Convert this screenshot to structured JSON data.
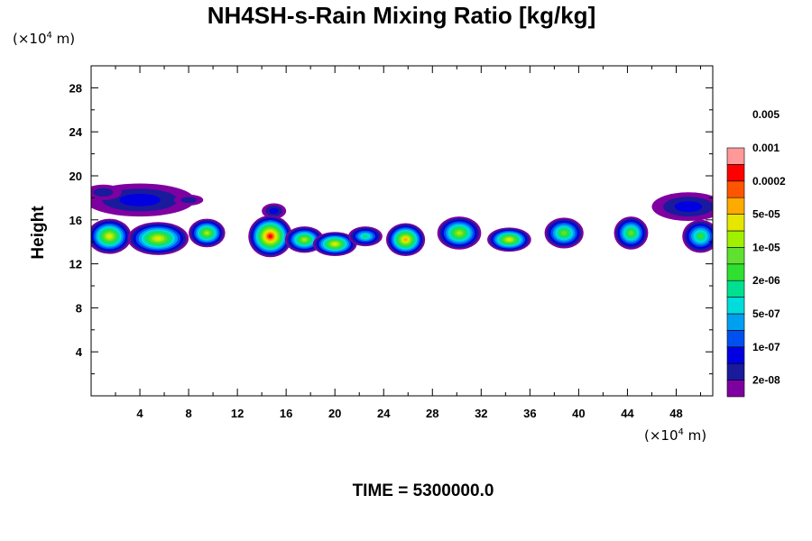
{
  "chart_data": {
    "type": "heatmap",
    "title": "NH4SH-s-Rain Mixing Ratio [kg/kg]",
    "ylabel": "Height",
    "x_unit_prefix": "(×10",
    "x_unit_exp": "4",
    "x_unit_suffix": " m)",
    "y_unit_prefix": "(×10",
    "y_unit_exp": "4",
    "y_unit_suffix": " m)",
    "xlim": [
      0,
      51
    ],
    "ylim": [
      0,
      30
    ],
    "x_ticks": [
      4,
      8,
      12,
      16,
      20,
      24,
      28,
      32,
      36,
      40,
      44,
      48
    ],
    "x_tick_labels": [
      "4",
      "8",
      "12",
      "16",
      "20",
      "24",
      "28",
      "32",
      "36",
      "40",
      "44",
      "48"
    ],
    "y_ticks": [
      4,
      8,
      12,
      16,
      20,
      24,
      28
    ],
    "y_tick_labels": [
      "4",
      "8",
      "12",
      "16",
      "20",
      "24",
      "28"
    ],
    "footer": "TIME = 5300000.0",
    "colorbar": {
      "colors": [
        "#7f00a0",
        "#1a1a9c",
        "#0000e0",
        "#0050f0",
        "#00a0f0",
        "#00dcdc",
        "#00e090",
        "#30e030",
        "#60e030",
        "#a0f000",
        "#e6e600",
        "#ffaa00",
        "#ff5500",
        "#ff0000",
        "#ff9999"
      ],
      "labels": [
        "2e-08",
        "1e-07",
        "5e-07",
        "2e-06",
        "1e-05",
        "5e-05",
        "0.0002",
        "0.001",
        "0.005"
      ]
    },
    "cloud_cells": [
      {
        "x": 1.5,
        "y": 14.5,
        "rx": 1.8,
        "ry": 1.6,
        "peak": 10
      },
      {
        "x": 5.5,
        "y": 14.3,
        "rx": 2.5,
        "ry": 1.5,
        "peak": 10
      },
      {
        "x": 9.5,
        "y": 14.8,
        "rx": 1.5,
        "ry": 1.3,
        "peak": 9
      },
      {
        "x": 14.7,
        "y": 14.5,
        "rx": 1.8,
        "ry": 1.9,
        "peak": 13
      },
      {
        "x": 17.5,
        "y": 14.2,
        "rx": 1.6,
        "ry": 1.2,
        "peak": 9
      },
      {
        "x": 20.0,
        "y": 13.8,
        "rx": 1.8,
        "ry": 1.1,
        "peak": 10
      },
      {
        "x": 22.5,
        "y": 14.5,
        "rx": 1.4,
        "ry": 0.9,
        "peak": 6
      },
      {
        "x": 25.8,
        "y": 14.2,
        "rx": 1.6,
        "ry": 1.5,
        "peak": 11
      },
      {
        "x": 30.2,
        "y": 14.8,
        "rx": 1.8,
        "ry": 1.5,
        "peak": 9
      },
      {
        "x": 34.3,
        "y": 14.2,
        "rx": 1.8,
        "ry": 1.1,
        "peak": 10
      },
      {
        "x": 38.8,
        "y": 14.8,
        "rx": 1.6,
        "ry": 1.4,
        "peak": 8
      },
      {
        "x": 44.3,
        "y": 14.8,
        "rx": 1.4,
        "ry": 1.5,
        "peak": 8
      },
      {
        "x": 50.0,
        "y": 14.5,
        "rx": 1.5,
        "ry": 1.5,
        "peak": 7
      }
    ],
    "anvil_cells": [
      {
        "x": 4.0,
        "y": 17.8,
        "rx": 4.5,
        "ry": 1.5,
        "peak": 2
      },
      {
        "x": 15.0,
        "y": 16.8,
        "rx": 1.0,
        "ry": 0.7,
        "peak": 2
      },
      {
        "x": 8.0,
        "y": 17.8,
        "rx": 1.2,
        "ry": 0.5,
        "peak": 1
      },
      {
        "x": 49.0,
        "y": 17.2,
        "rx": 3.0,
        "ry": 1.3,
        "peak": 2
      },
      {
        "x": 1.0,
        "y": 18.5,
        "rx": 1.5,
        "ry": 0.7,
        "peak": 1
      }
    ]
  }
}
